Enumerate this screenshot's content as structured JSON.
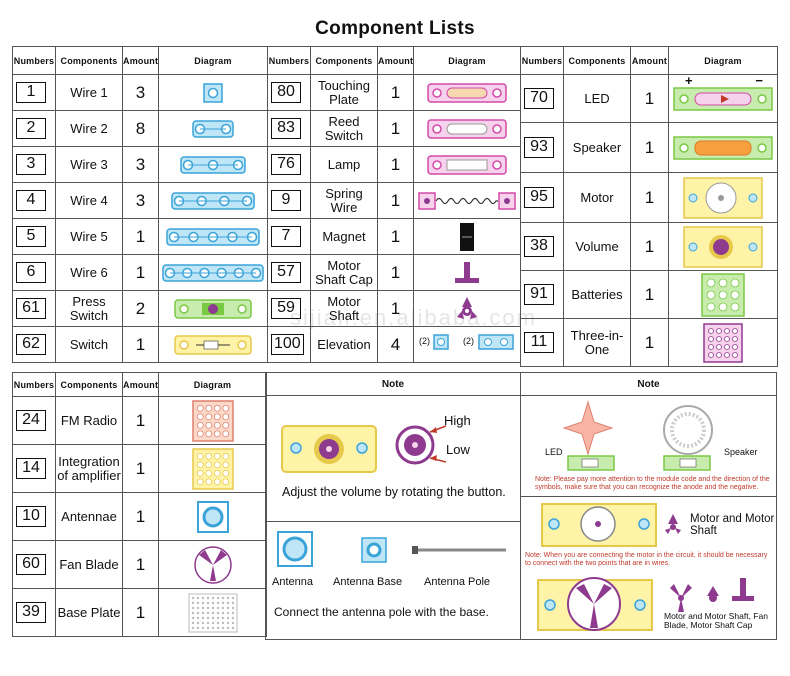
{
  "title": "Component Lists",
  "headers": {
    "numbers": "Numbers",
    "components": "Components",
    "amount": "Amount",
    "diagram": "Diagram",
    "note": "Note"
  },
  "col1": [
    {
      "num": "1",
      "name": "Wire 1",
      "amt": "3",
      "icon": "wire-1-icon"
    },
    {
      "num": "2",
      "name": "Wire 2",
      "amt": "8",
      "icon": "wire-2-icon"
    },
    {
      "num": "3",
      "name": "Wire 3",
      "amt": "3",
      "icon": "wire-3-icon"
    },
    {
      "num": "4",
      "name": "Wire 4",
      "amt": "3",
      "icon": "wire-4-icon"
    },
    {
      "num": "5",
      "name": "Wire 5",
      "amt": "1",
      "icon": "wire-5-icon"
    },
    {
      "num": "6",
      "name": "Wire 6",
      "amt": "1",
      "icon": "wire-6-icon"
    },
    {
      "num": "61",
      "name": "Press Switch",
      "amt": "2",
      "icon": "press-switch-icon"
    },
    {
      "num": "62",
      "name": "Switch",
      "amt": "1",
      "icon": "switch-icon"
    }
  ],
  "col2": [
    {
      "num": "80",
      "name": "Touching Plate",
      "amt": "1",
      "icon": "touching-plate-icon"
    },
    {
      "num": "83",
      "name": "Reed Switch",
      "amt": "1",
      "icon": "reed-switch-icon"
    },
    {
      "num": "76",
      "name": "Lamp",
      "amt": "1",
      "icon": "lamp-icon"
    },
    {
      "num": "9",
      "name": "Spring Wire",
      "amt": "1",
      "icon": "spring-wire-icon"
    },
    {
      "num": "7",
      "name": "Magnet",
      "amt": "1",
      "icon": "magnet-icon"
    },
    {
      "num": "57",
      "name": "Motor Shaft Cap",
      "amt": "1",
      "icon": "motor-shaft-cap-icon"
    },
    {
      "num": "59",
      "name": "Motor Shaft",
      "amt": "1",
      "icon": "motor-shaft-icon"
    },
    {
      "num": "100",
      "name": "Elevation",
      "amt": "4",
      "icon": "elevation-icon",
      "extra": [
        "(2)",
        "(2)"
      ]
    }
  ],
  "col3": [
    {
      "num": "70",
      "name": "LED",
      "amt": "1",
      "icon": "led-icon",
      "plus": "+",
      "minus": "−"
    },
    {
      "num": "93",
      "name": "Speaker",
      "amt": "1",
      "icon": "speaker-icon"
    },
    {
      "num": "95",
      "name": "Motor",
      "amt": "1",
      "icon": "motor-icon"
    },
    {
      "num": "38",
      "name": "Volume",
      "amt": "1",
      "icon": "volume-icon"
    },
    {
      "num": "91",
      "name": "Batteries",
      "amt": "1",
      "icon": "batteries-icon"
    },
    {
      "num": "11",
      "name": "Three-in-One",
      "amt": "1",
      "icon": "three-in-one-icon"
    }
  ],
  "col4": [
    {
      "num": "24",
      "name": "FM Radio",
      "amt": "1",
      "icon": "fm-radio-icon"
    },
    {
      "num": "14",
      "name": "Integration of amplifier",
      "amt": "1",
      "icon": "amplifier-icon"
    },
    {
      "num": "10",
      "name": "Antennae",
      "amt": "1",
      "icon": "antennae-icon"
    },
    {
      "num": "60",
      "name": "Fan Blade",
      "amt": "1",
      "icon": "fan-blade-icon"
    },
    {
      "num": "39",
      "name": "Base Plate",
      "amt": "1",
      "icon": "base-plate-icon"
    }
  ],
  "note1": {
    "high": "High",
    "low": "Low",
    "volume_text": "Adjust the volume by rotating the button.",
    "antenna": "Antenna",
    "antenna_base": "Antenna Base",
    "antenna_pole": "Antenna Pole",
    "antenna_text": "Connect the antenna pole with the base."
  },
  "note2": {
    "led": "LED",
    "speaker": "Speaker",
    "warn1": "Note: Please pay more attention to the module code and the direction of the symbols, make sure that you can recognize the anode and the negative.",
    "motor_shaft": "Motor and Motor Shaft",
    "warn2": "Note: When you are connecting the motor in the circuit, it should be necessary to connect with the two points that are in wires.",
    "final": "Motor and Motor Shaft, Fan Blade, Motor Shaft Cap"
  },
  "colors": {
    "wire_blue": "#3aa3d8",
    "wire_fill": "#bfe6f7",
    "pink": "#d44aa8",
    "pink_fill": "#f6d2ec",
    "green": "#7ac943",
    "green_fill": "#c7ecae",
    "yellow": "#e6c84a",
    "yellow_fill": "#fff3a8",
    "purple": "#8e3a8f",
    "red": "#c0392b"
  },
  "watermark": "sijiali.en.alibaba.com"
}
